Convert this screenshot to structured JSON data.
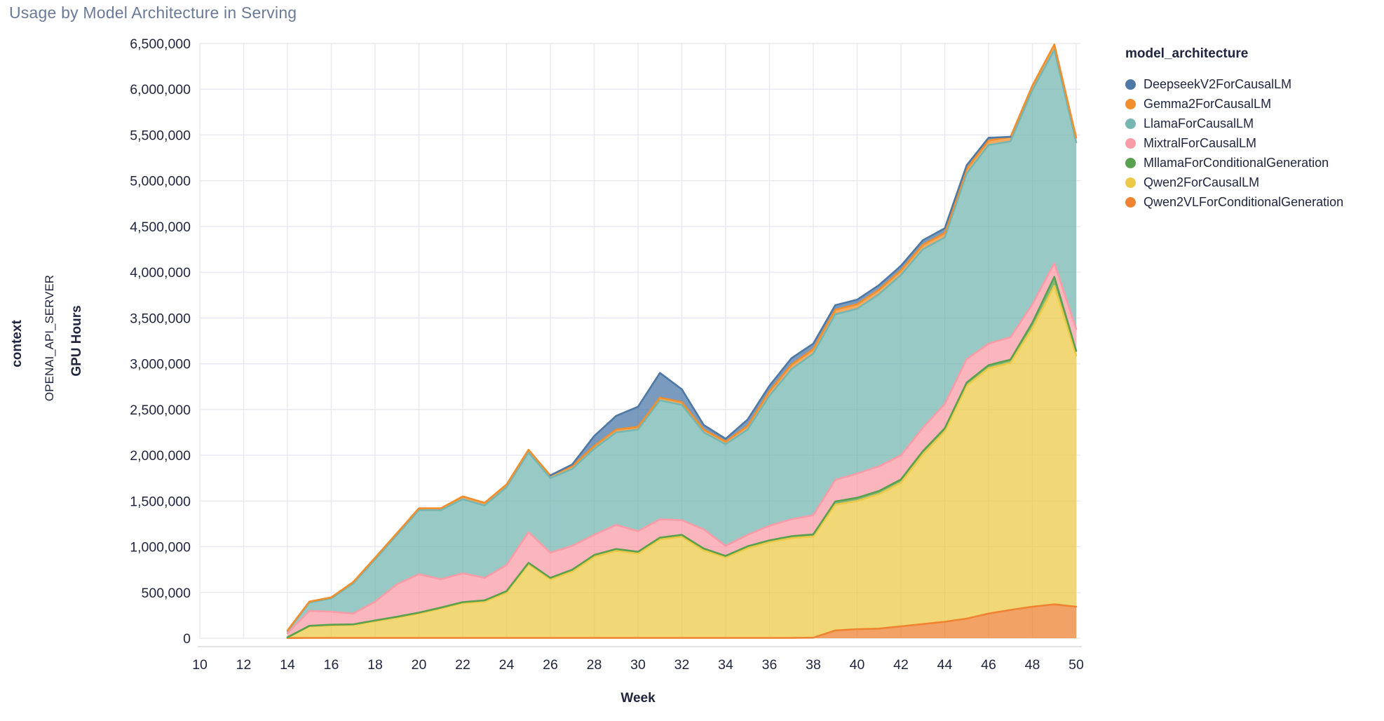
{
  "title": "Usage by Model Architecture in Serving",
  "facet": {
    "title": "context",
    "value": "OPENAI_API_SERVER"
  },
  "axes": {
    "x_title": "Week",
    "y_title": "GPU Hours",
    "x_ticks": [
      10,
      12,
      14,
      16,
      18,
      20,
      22,
      24,
      26,
      28,
      30,
      32,
      34,
      36,
      38,
      40,
      42,
      44,
      46,
      48,
      50
    ],
    "y_ticks": [
      0,
      500000,
      1000000,
      1500000,
      2000000,
      2500000,
      3000000,
      3500000,
      4000000,
      4500000,
      5000000,
      5500000,
      6000000,
      6500000
    ],
    "y_tick_labels": [
      "0",
      "500,000",
      "1,000,000",
      "1,500,000",
      "2,000,000",
      "2,500,000",
      "3,000,000",
      "3,500,000",
      "4,000,000",
      "4,500,000",
      "5,000,000",
      "5,500,000",
      "6,000,000",
      "6,500,000"
    ],
    "x_range": [
      10,
      50
    ],
    "y_range": [
      0,
      6500000
    ]
  },
  "legend": {
    "title": "model_architecture"
  },
  "style": {
    "text_color": "#21263f",
    "title_color": "#6b7b97",
    "grid_color": "#e8e8f0",
    "axis_line_color": "#d8d8e2",
    "fill_opacity": 0.75
  },
  "chart_data": {
    "type": "area",
    "stacked": true,
    "title": "Usage by Model Architecture in Serving",
    "xlabel": "Week",
    "ylabel": "GPU Hours",
    "xlim": [
      10,
      50
    ],
    "ylim": [
      0,
      6500000
    ],
    "grid": true,
    "legend_position": "right",
    "x": [
      14,
      15,
      16,
      17,
      18,
      19,
      20,
      21,
      22,
      23,
      24,
      25,
      26,
      27,
      28,
      29,
      30,
      31,
      32,
      33,
      34,
      35,
      36,
      37,
      38,
      39,
      40,
      41,
      42,
      43,
      44,
      45,
      46,
      47,
      48,
      49,
      50
    ],
    "stack_order_bottom_to_top": [
      "Qwen2VLForConditionalGeneration",
      "Qwen2ForCausalLM",
      "MllamaForConditionalGeneration",
      "MixtralForCausalLM",
      "LlamaForCausalLM",
      "Gemma2ForCausalLM",
      "DeepseekV2ForCausalLM"
    ],
    "series": [
      {
        "name": "DeepseekV2ForCausalLM",
        "color": "#4e79a7",
        "values": [
          0,
          0,
          0,
          0,
          0,
          0,
          0,
          0,
          0,
          0,
          0,
          0,
          0,
          20000,
          110000,
          150000,
          220000,
          270000,
          140000,
          50000,
          30000,
          70000,
          60000,
          70000,
          60000,
          50000,
          50000,
          50000,
          50000,
          50000,
          50000,
          40000,
          30000,
          0,
          0,
          0,
          0
        ]
      },
      {
        "name": "Gemma2ForCausalLM",
        "color": "#f28e2b",
        "values": [
          8000,
          10000,
          12000,
          15000,
          20000,
          20000,
          20000,
          20000,
          30000,
          30000,
          30000,
          30000,
          30000,
          30000,
          30000,
          30000,
          30000,
          30000,
          30000,
          30000,
          30000,
          40000,
          50000,
          50000,
          50000,
          50000,
          50000,
          50000,
          50000,
          50000,
          50000,
          50000,
          50000,
          50000,
          50000,
          60000,
          50000
        ]
      },
      {
        "name": "LlamaForCausalLM",
        "color": "#76b7b2",
        "values": [
          22000,
          90000,
          145000,
          330000,
          460000,
          540000,
          700000,
          755000,
          810000,
          790000,
          850000,
          870000,
          815000,
          840000,
          940000,
          1010000,
          1110000,
          1300000,
          1260000,
          1060000,
          1110000,
          1150000,
          1420000,
          1640000,
          1765000,
          1810000,
          1800000,
          1880000,
          1970000,
          1950000,
          1820000,
          2030000,
          2170000,
          2140000,
          2340000,
          2330000,
          2040000
        ]
      },
      {
        "name": "MixtralForCausalLM",
        "color": "#f89ca7",
        "values": [
          45000,
          164000,
          142000,
          118000,
          205000,
          355000,
          420000,
          310000,
          315000,
          245000,
          285000,
          335000,
          275000,
          260000,
          220000,
          265000,
          225000,
          200000,
          160000,
          210000,
          110000,
          125000,
          160000,
          185000,
          210000,
          235000,
          265000,
          270000,
          265000,
          255000,
          265000,
          255000,
          235000,
          245000,
          200000,
          150000,
          240000
        ]
      },
      {
        "name": "MllamaForConditionalGeneration",
        "color": "#59a14f",
        "values": [
          2000,
          6000,
          8000,
          7000,
          10000,
          10000,
          10000,
          10000,
          10000,
          15000,
          15000,
          15000,
          15000,
          20000,
          20000,
          20000,
          20000,
          20000,
          20000,
          20000,
          15000,
          20000,
          20000,
          20000,
          25000,
          35000,
          35000,
          35000,
          35000,
          35000,
          35000,
          35000,
          35000,
          35000,
          60000,
          100000,
          50000
        ]
      },
      {
        "name": "Qwen2ForCausalLM",
        "color": "#edc948",
        "values": [
          6000,
          126000,
          136000,
          141000,
          181000,
          221000,
          266000,
          321000,
          381000,
          396000,
          496000,
          806000,
          641000,
          726000,
          886000,
          951000,
          921000,
          1076000,
          1106000,
          956000,
          881000,
          981000,
          1046000,
          1091000,
          1104000,
          1375000,
          1400000,
          1470000,
          1570000,
          1855000,
          2080000,
          2545000,
          2680000,
          2700000,
          3045000,
          3480000,
          2745000
        ]
      },
      {
        "name": "Qwen2VLForConditionalGeneration",
        "color": "#ef8331",
        "values": [
          2000,
          4000,
          4000,
          4000,
          4000,
          4000,
          4000,
          4000,
          4000,
          4000,
          4000,
          4000,
          4000,
          4000,
          4000,
          4000,
          4000,
          4000,
          4000,
          4000,
          4000,
          4000,
          4000,
          4000,
          6000,
          85000,
          100000,
          105000,
          130000,
          155000,
          180000,
          215000,
          270000,
          310000,
          345000,
          370000,
          345000
        ]
      }
    ]
  }
}
